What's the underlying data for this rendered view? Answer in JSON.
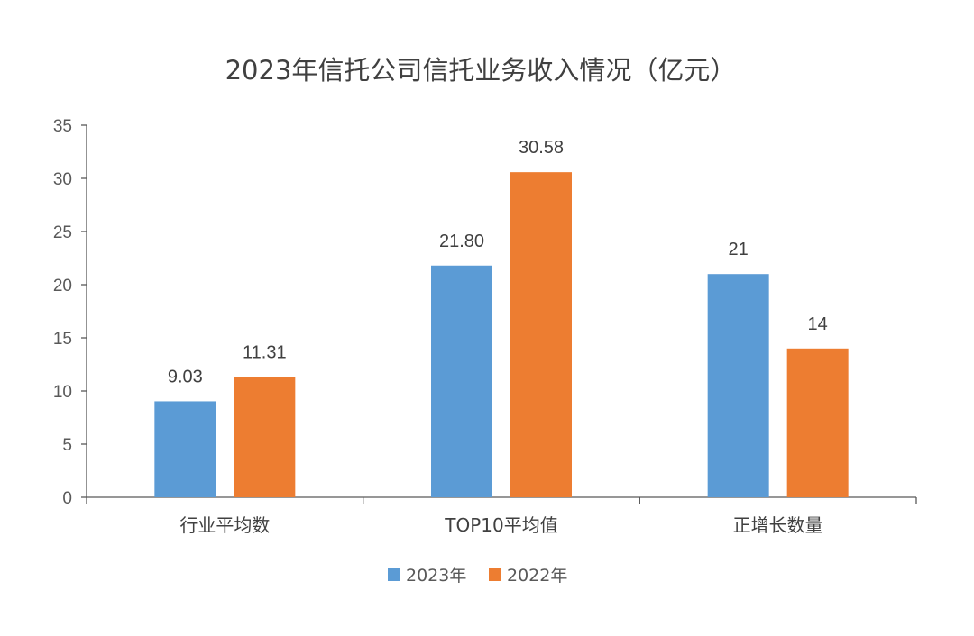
{
  "chart_data": {
    "type": "bar",
    "title": "2023年信托公司信托业务收入情况（亿元）",
    "categories": [
      "行业平均数",
      "TOP10平均值",
      "正增长数量"
    ],
    "series": [
      {
        "name": "2023年",
        "values": [
          9.03,
          21.8,
          21
        ],
        "labels": [
          "9.03",
          "21.80",
          "21"
        ],
        "color": "#5B9BD5"
      },
      {
        "name": "2022年",
        "values": [
          11.31,
          30.58,
          14
        ],
        "labels": [
          "11.31",
          "30.58",
          "14"
        ],
        "color": "#ED7D31"
      }
    ],
    "ylim": [
      0,
      35
    ],
    "yticks": [
      "0",
      "5",
      "10",
      "15",
      "20",
      "25",
      "30",
      "35"
    ],
    "xlabel": "",
    "ylabel": "",
    "grid": false,
    "legend_position": "bottom"
  }
}
